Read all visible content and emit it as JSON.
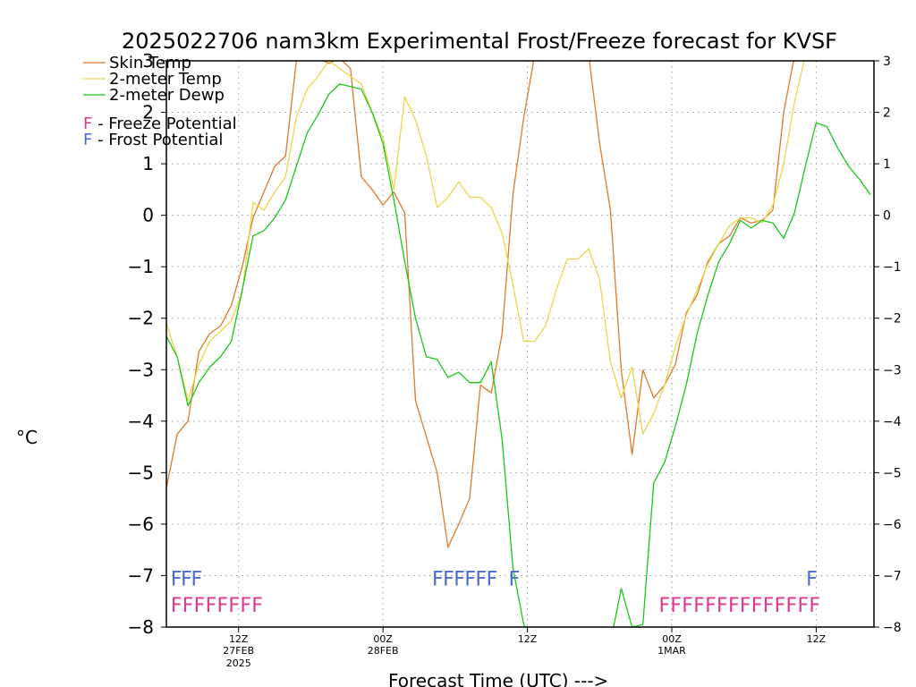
{
  "chart_data": {
    "type": "line",
    "title": "2025022706 nam3km Experimental Frost/Freeze forecast for KVSF",
    "ylabel": "°C",
    "xlabel": "Forecast Time (UTC) --->",
    "ylim": [
      -8,
      3
    ],
    "xlim": [
      6,
      55
    ],
    "grid": true,
    "yticks": [
      -8,
      -7,
      -6,
      -5,
      -4,
      -3,
      -2,
      -1,
      0,
      1,
      2,
      3
    ],
    "yticks_right": [
      -8,
      -7,
      -6,
      -5,
      -4,
      -3,
      -2,
      -1,
      0,
      1,
      2,
      3
    ],
    "xticks": [
      {
        "x": 11,
        "label": "12Z",
        "sub1": "27FEB",
        "sub2": "2025"
      },
      {
        "x": 21,
        "label": "00Z",
        "sub1": "28FEB",
        "sub2": ""
      },
      {
        "x": 31,
        "label": "12Z",
        "sub1": "",
        "sub2": ""
      },
      {
        "x": 41,
        "label": "00Z",
        "sub1": "1MAR",
        "sub2": ""
      },
      {
        "x": 51,
        "label": "12Z",
        "sub1": "",
        "sub2": ""
      }
    ],
    "legend": [
      {
        "label": "Skin Temp",
        "color": "#e07a2a"
      },
      {
        "label": "2-meter Temp",
        "color": "#e8d84a"
      },
      {
        "label": "2-meter Dewp",
        "color": "#19c819"
      }
    ],
    "potential_legend": [
      {
        "letter": "F",
        "text": " - Freeze Potential",
        "color": "#e0388c"
      },
      {
        "letter": "F",
        "text": " - Frost Potential",
        "color": "#4a6ad8"
      }
    ],
    "series": [
      {
        "name": "Skin Temp",
        "color": "#e07a2a",
        "x": [
          6,
          6.75,
          7.5,
          8.25,
          9,
          9.75,
          10.5,
          11.25,
          12,
          12.75,
          13.5,
          14.25,
          15,
          15.75,
          16.5,
          17.25,
          18,
          18.75,
          19.5,
          20.25,
          21,
          21.75,
          22.5,
          23.25,
          24,
          24.75,
          25.5,
          26.25,
          27,
          27.75,
          28.5,
          29.25,
          30,
          30.75,
          31.5,
          32.25,
          33,
          33.75,
          34.5,
          35.25,
          36,
          36.75,
          37.5,
          38.25,
          39,
          39.75,
          40.5,
          41.25,
          42,
          42.75,
          43.5,
          44.25,
          45,
          45.75,
          46.5,
          47.25,
          48,
          48.75,
          49.5,
          50.25,
          51,
          51.75,
          52.5,
          53.25,
          54,
          54.75
        ],
        "y": [
          -5.3,
          -4.25,
          -4.0,
          -2.65,
          -2.3,
          -2.15,
          -1.75,
          -1.0,
          -0.05,
          0.45,
          0.95,
          1.15,
          3.0,
          3.1,
          3.05,
          2.95,
          3.05,
          2.85,
          0.75,
          0.5,
          0.2,
          0.45,
          0.05,
          -3.6,
          -4.3,
          -5.0,
          -6.45,
          -6.0,
          -5.5,
          -3.3,
          -3.45,
          -2.3,
          0.4,
          1.9,
          3.1,
          3.1,
          3.1,
          3.1,
          3.1,
          3.1,
          1.4,
          0.1,
          -3.0,
          -4.65,
          -3.0,
          -3.55,
          -3.3,
          -2.9,
          -1.9,
          -1.55,
          -0.9,
          -0.55,
          -0.4,
          -0.05,
          -0.15,
          -0.1,
          0.1,
          2.0,
          3.1,
          3.1,
          3.1,
          3.1,
          3.1,
          3.1,
          3.1,
          3.1
        ]
      },
      {
        "name": "2-meter Temp",
        "color": "#e8d84a",
        "x": [
          6,
          6.75,
          7.5,
          8.25,
          9,
          9.75,
          10.5,
          11.25,
          12,
          12.75,
          13.5,
          14.25,
          15,
          15.75,
          16.5,
          17.25,
          18,
          18.75,
          19.5,
          20.25,
          21,
          21.75,
          22.5,
          23.25,
          24,
          24.75,
          25.5,
          26.25,
          27,
          27.75,
          28.5,
          29.25,
          30,
          30.75,
          31.5,
          32.25,
          33,
          33.75,
          34.5,
          35.25,
          36,
          36.75,
          37.5,
          38.25,
          39,
          39.75,
          40.5,
          41.25,
          42,
          42.75,
          43.5,
          44.25,
          45,
          45.75,
          46.5,
          47.25,
          48,
          48.75,
          49.5,
          50.25,
          51,
          51.75,
          52.5,
          53.25,
          54,
          54.75
        ],
        "y": [
          -2.1,
          -2.75,
          -3.6,
          -2.9,
          -2.45,
          -2.25,
          -2.05,
          -1.5,
          0.25,
          0.1,
          0.45,
          0.75,
          1.9,
          2.45,
          2.7,
          3.0,
          2.85,
          2.7,
          2.55,
          2.0,
          1.5,
          0.5,
          2.3,
          1.85,
          1.15,
          0.15,
          0.35,
          0.65,
          0.35,
          0.35,
          0.15,
          -0.35,
          -1.35,
          -2.45,
          -2.45,
          -2.15,
          -1.45,
          -0.85,
          -0.85,
          -0.65,
          -1.25,
          -2.85,
          -3.55,
          -2.95,
          -4.25,
          -3.85,
          -3.3,
          -2.55,
          -1.95,
          -1.45,
          -0.95,
          -0.55,
          -0.2,
          -0.05,
          -0.05,
          -0.15,
          0.2,
          1.0,
          2.2,
          3.1,
          3.1,
          3.1,
          3.1,
          3.1,
          3.1,
          3.1
        ]
      },
      {
        "name": "2-meter Dewp",
        "color": "#19c819",
        "x": [
          6,
          6.75,
          7.5,
          8.25,
          9,
          9.75,
          10.5,
          11.25,
          12,
          12.75,
          13.5,
          14.25,
          15,
          15.75,
          16.5,
          17.25,
          18,
          18.75,
          19.5,
          20.25,
          21,
          21.75,
          22.5,
          23.25,
          24,
          24.75,
          25.5,
          26.25,
          27,
          27.75,
          28.5,
          29.25,
          30,
          30.75,
          31.5,
          32.25,
          33,
          33.75,
          34.5,
          35.25,
          36,
          36.75,
          37.5,
          38.25,
          39,
          39.75,
          40.5,
          41.25,
          42,
          42.75,
          43.5,
          44.25,
          45,
          45.75,
          46.5,
          47.25,
          48,
          48.75,
          49.5,
          50.25,
          51,
          51.75,
          52.5,
          53.25,
          54,
          54.75
        ],
        "y": [
          -2.35,
          -2.75,
          -3.7,
          -3.25,
          -2.95,
          -2.75,
          -2.45,
          -1.45,
          -0.4,
          -0.3,
          -0.05,
          0.3,
          0.95,
          1.6,
          1.95,
          2.35,
          2.55,
          2.5,
          2.45,
          2.0,
          1.4,
          0.3,
          -0.9,
          -2.0,
          -2.75,
          -2.8,
          -3.15,
          -3.05,
          -3.25,
          -3.25,
          -2.85,
          -4.35,
          -6.85,
          -7.95,
          -8.3,
          -8.3,
          -8.3,
          -8.3,
          -8.3,
          -8.3,
          -8.3,
          -8.3,
          -7.25,
          -8.0,
          -7.95,
          -5.2,
          -4.8,
          -4.1,
          -3.3,
          -2.3,
          -1.55,
          -0.9,
          -0.55,
          -0.1,
          -0.25,
          -0.1,
          -0.15,
          -0.45,
          0.05,
          0.95,
          1.8,
          1.72,
          1.3,
          0.95,
          0.7,
          0.4
        ]
      }
    ],
    "frost_text": "F",
    "frost_color": "#4a6ad8",
    "freeze_color": "#e0388c",
    "frost_marks": [
      6.3,
      7.0,
      7.7,
      24.4,
      25.15,
      25.9,
      26.65,
      27.4,
      28.15,
      29.7,
      50.3
    ],
    "freeze_marks": [
      6.3,
      7.1,
      7.9,
      8.7,
      9.5,
      10.3,
      11.1,
      11.9,
      40.1,
      40.9,
      41.7,
      42.5,
      43.3,
      44.1,
      44.9,
      45.7,
      46.5,
      47.3,
      48.1,
      48.9,
      49.7,
      50.5
    ]
  }
}
